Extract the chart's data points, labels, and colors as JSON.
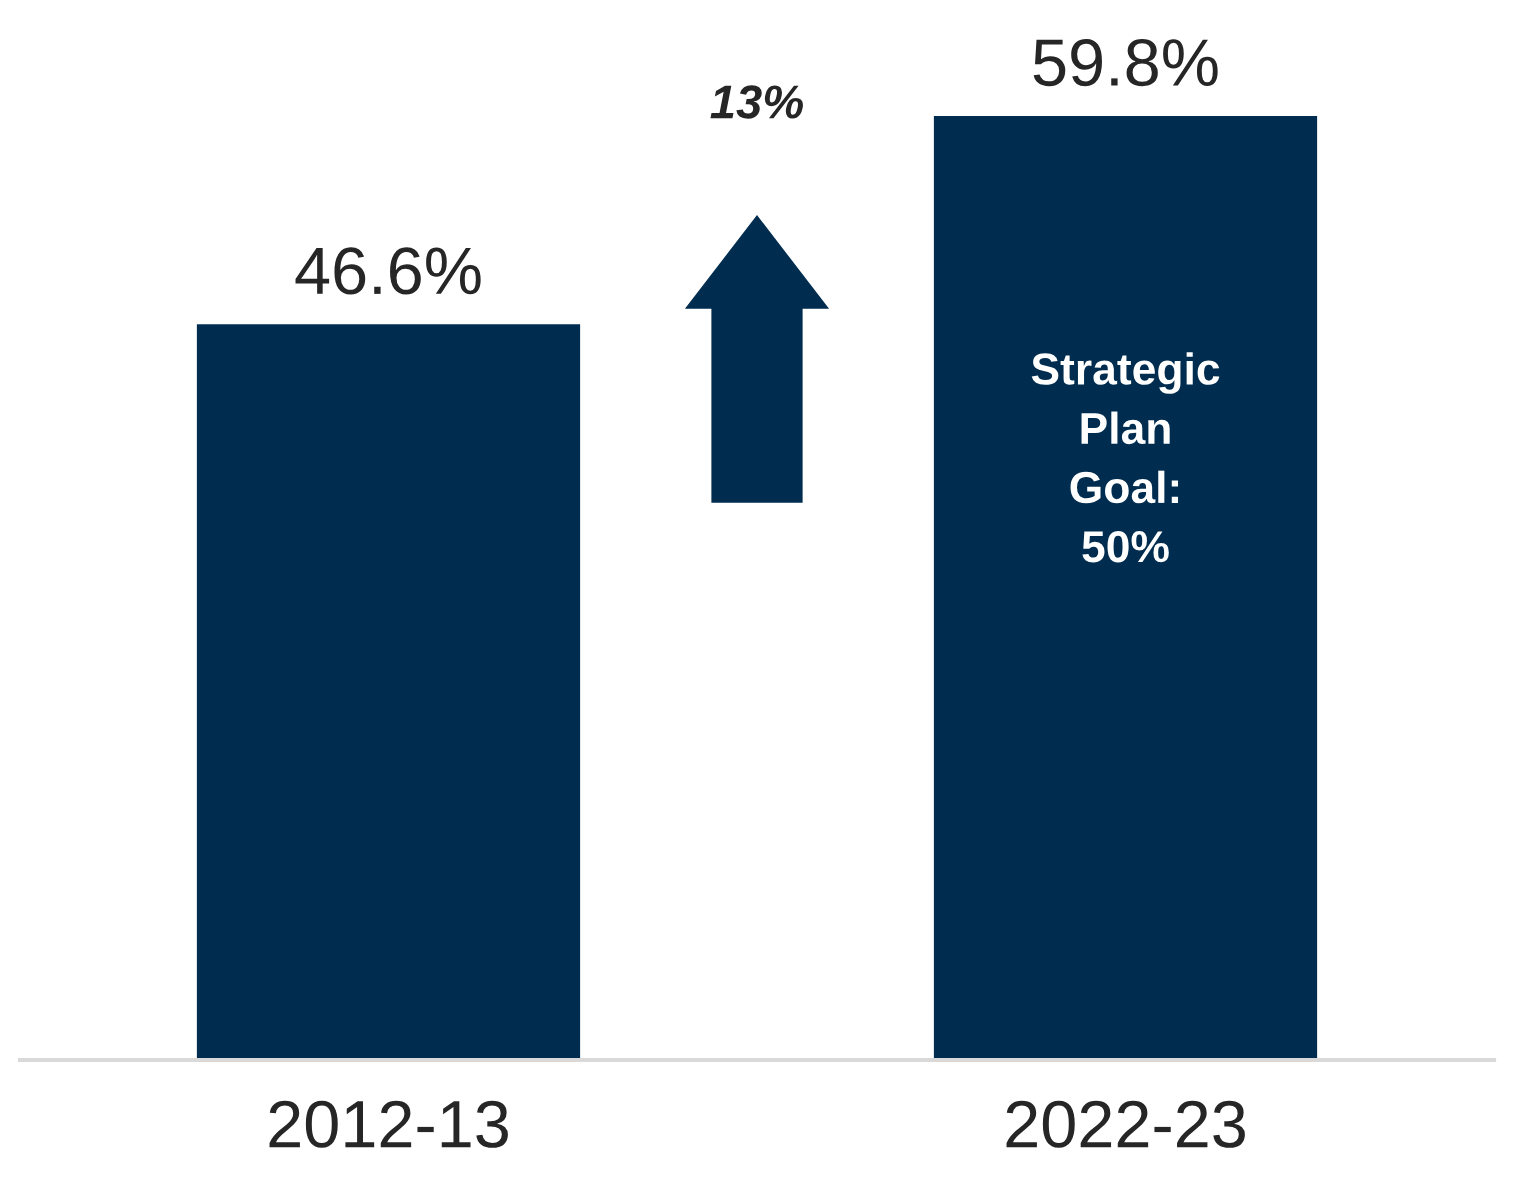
{
  "chart_data": {
    "type": "bar",
    "categories": [
      "2012-13",
      "2022-23"
    ],
    "values": [
      46.6,
      59.8
    ],
    "color": "#002d4f",
    "value_labels": [
      "46.6%",
      "59.8%"
    ],
    "grid": false,
    "legend": false,
    "annotations": [
      "13%",
      "Strategic\nPlan\nGoal:\n50%"
    ]
  }
}
